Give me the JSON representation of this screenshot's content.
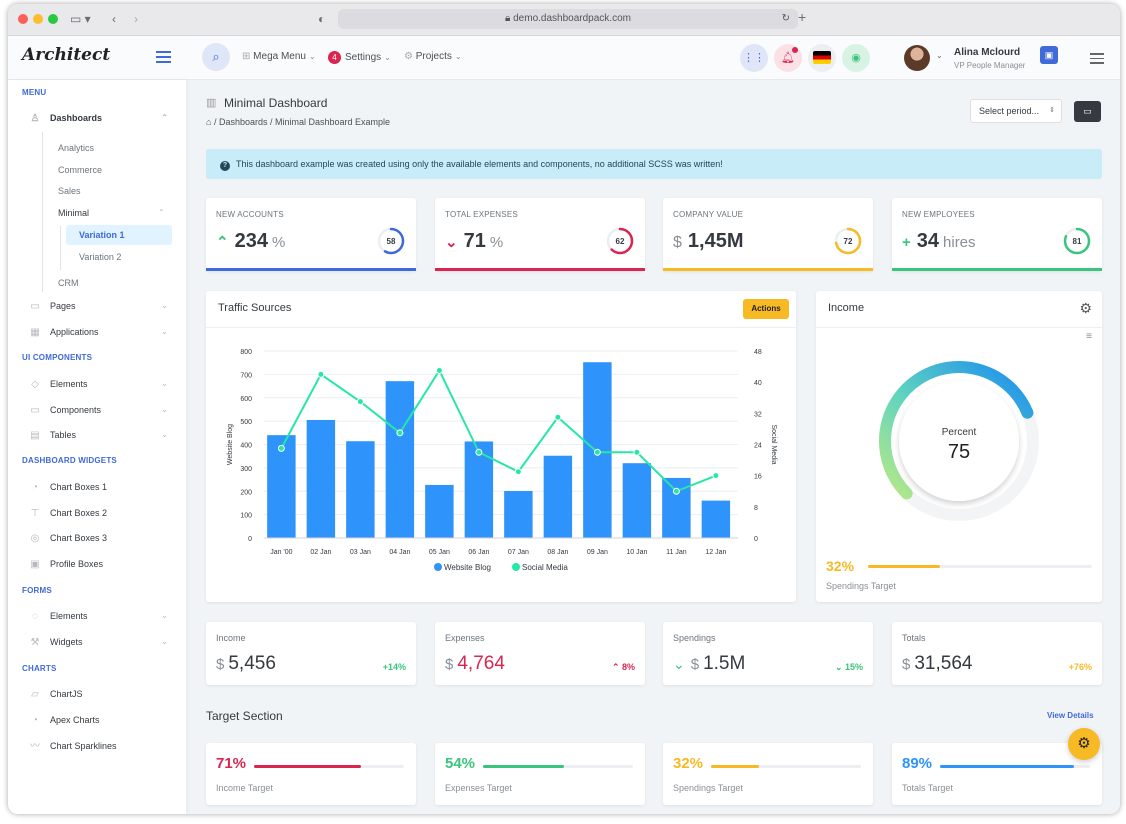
{
  "browser": {
    "url": "demo.dashboardpack.com"
  },
  "header": {
    "logo": "Architect",
    "nav": [
      {
        "label": "Mega Menu"
      },
      {
        "label": "Settings",
        "badge": "4"
      },
      {
        "label": "Projects"
      }
    ],
    "user": {
      "name": "Alina Mclourd",
      "role": "VP People Manager"
    }
  },
  "sidebar": {
    "sections": {
      "menu": "MENU",
      "ui": "UI COMPONENTS",
      "widgets": "DASHBOARD WIDGETS",
      "forms": "FORMS",
      "charts": "CHARTS"
    },
    "dashboards": "Dashboards",
    "dash_subs": [
      "Analytics",
      "Commerce",
      "Sales",
      "Minimal"
    ],
    "minimal_subs": [
      "Variation 1",
      "Variation 2"
    ],
    "crm": "CRM",
    "pages": "Pages",
    "applications": "Applications",
    "ui_items": [
      "Elements",
      "Components",
      "Tables"
    ],
    "widget_items": [
      "Chart Boxes 1",
      "Chart Boxes 2",
      "Chart Boxes 3",
      "Profile Boxes"
    ],
    "form_items": [
      "Elements",
      "Widgets"
    ],
    "chart_items": [
      "ChartJS",
      "Apex Charts",
      "Chart Sparklines"
    ]
  },
  "page": {
    "title": "Minimal Dashboard",
    "breadcrumb": [
      "Dashboards",
      "Minimal Dashboard Example"
    ],
    "period_select": "Select period...",
    "alert": "This dashboard example was created using only the available elements and components, no additional SCSS was written!"
  },
  "kpis": [
    {
      "label": "NEW ACCOUNTS",
      "prefix": "^",
      "value": "234",
      "unit": "%",
      "ring": 58,
      "color": "#3f6ad8"
    },
    {
      "label": "TOTAL EXPENSES",
      "prefix": "v",
      "value": "71",
      "unit": "%",
      "ring": 62,
      "color": "#d92550"
    },
    {
      "label": "COMPANY VALUE",
      "prefix": "$",
      "value": "1,45M",
      "unit": "",
      "ring": 72,
      "color": "#f7b924"
    },
    {
      "label": "NEW EMPLOYEES",
      "prefix": "+",
      "value": "34",
      "unit": "hires",
      "ring": 81,
      "color": "#3ac47d"
    }
  ],
  "traffic": {
    "title": "Traffic Sources",
    "actions": "Actions"
  },
  "chart_data": {
    "type": "bar",
    "categories": [
      "Jan '00",
      "02 Jan",
      "03 Jan",
      "04 Jan",
      "05 Jan",
      "06 Jan",
      "07 Jan",
      "08 Jan",
      "09 Jan",
      "10 Jan",
      "11 Jan",
      "12 Jan"
    ],
    "series": [
      {
        "name": "Website Blog",
        "type": "bar",
        "values": [
          440,
          505,
          414,
          671,
          227,
          413,
          201,
          352,
          752,
          320,
          257,
          160
        ],
        "color": "#2e93fa"
      },
      {
        "name": "Social Media",
        "type": "line",
        "axis": "right",
        "values": [
          23,
          42,
          35,
          27,
          43,
          22,
          17,
          31,
          22,
          22,
          12,
          16
        ],
        "color": "#26e7a6"
      }
    ],
    "ylabel": "Website Blog",
    "y2label": "Social Media",
    "ylim": [
      0,
      800
    ],
    "y2lim": [
      0,
      48
    ],
    "yticks": [
      0,
      100,
      200,
      300,
      400,
      500,
      600,
      700,
      800
    ],
    "y2ticks": [
      0,
      8,
      16,
      24,
      32,
      40,
      48
    ],
    "legend": "bottom"
  },
  "income": {
    "title": "Income",
    "gauge_label": "Percent",
    "gauge_value": "75",
    "gauge_fraction": 0.75,
    "target_pct": "32%",
    "target_fraction": 0.32,
    "target_label": "Spendings Target"
  },
  "metrics": [
    {
      "label": "Income",
      "cur": "$",
      "value": "5,456",
      "change": "+14%",
      "vcolor": "#343a40",
      "ccolor": "#3ac47d",
      "icon": ""
    },
    {
      "label": "Expenses",
      "cur": "$",
      "value": "4,764",
      "change": "8%",
      "vcolor": "#d92550",
      "ccolor": "#d92550",
      "icon": "^"
    },
    {
      "label": "Spendings",
      "cur": "$",
      "value": "1.5M",
      "change": "15%",
      "vcolor": "#343a40",
      "ccolor": "#3ac47d",
      "icon": "v",
      "lead": "v"
    },
    {
      "label": "Totals",
      "cur": "$",
      "value": "31,564",
      "change": "+76%",
      "vcolor": "#343a40",
      "ccolor": "#f7b924",
      "icon": ""
    }
  ],
  "target_section": {
    "title": "Target Section",
    "link": "View Details"
  },
  "targets": [
    {
      "pct": "71%",
      "fraction": 0.71,
      "label": "Income Target",
      "color": "#d92550"
    },
    {
      "pct": "54%",
      "fraction": 0.54,
      "label": "Expenses Target",
      "color": "#3ac47d"
    },
    {
      "pct": "32%",
      "fraction": 0.32,
      "label": "Spendings Target",
      "color": "#f7b924"
    },
    {
      "pct": "89%",
      "fraction": 0.89,
      "label": "Totals Target",
      "color": "#2e93fa"
    }
  ]
}
